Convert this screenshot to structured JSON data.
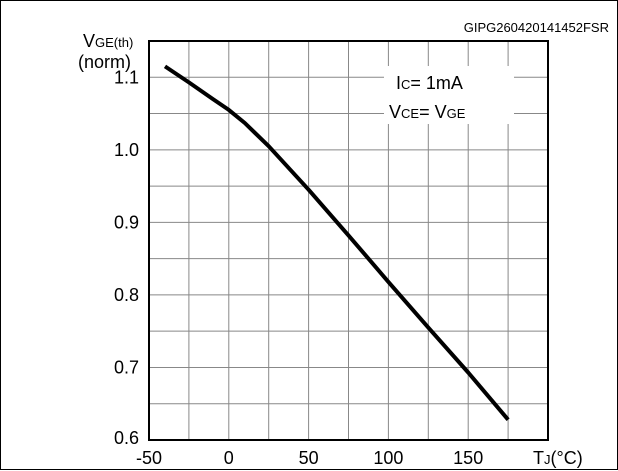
{
  "chart_data": {
    "type": "line",
    "code": "GIPG260420141452FSR",
    "ylabel": {
      "main": "V",
      "sub": "GE(th)",
      "unit": "(norm)"
    },
    "xlabel": {
      "main": "T",
      "sub": "J",
      "unit": "(°C)"
    },
    "annotations": [
      {
        "main": "I",
        "sub": "C",
        "rest": "= 1mA"
      },
      {
        "main": "V",
        "sub": "CE",
        "rest": "= V",
        "sub2": "GE"
      }
    ],
    "xlim": [
      -50,
      200
    ],
    "ylim": [
      0.6,
      1.15
    ],
    "x_ticks": [
      -50,
      0,
      50,
      100,
      150
    ],
    "x_tick_labels": [
      "-50",
      "0",
      "50",
      "100",
      "150"
    ],
    "y_ticks": [
      0.6,
      0.7,
      0.8,
      0.9,
      1.0,
      1.1
    ],
    "y_tick_labels": [
      "0.6",
      "0.7",
      "0.8",
      "0.9",
      "1.0",
      "1.1"
    ],
    "grid": true,
    "series": [
      {
        "x": [
          -40,
          -25,
          -10,
          0,
          10,
          25,
          50,
          75,
          100,
          125,
          150,
          175
        ],
        "y": [
          1.115,
          1.093,
          1.07,
          1.055,
          1.037,
          1.005,
          0.945,
          0.882,
          0.818,
          0.755,
          0.693,
          0.628
        ]
      }
    ]
  }
}
